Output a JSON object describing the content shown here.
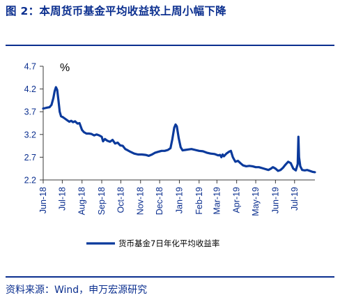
{
  "title": "图 2：本周货币基金平均收益较上周小幅下降",
  "source": "资料来源：Wind，申万宏源研究",
  "colors": {
    "line": "#0b3a9c",
    "text": "#0b2f8f",
    "axis": "#3a3a3a"
  },
  "chart_data": {
    "type": "line",
    "unit": "%",
    "ylim": [
      2.2,
      4.7
    ],
    "yticks": [
      2.2,
      2.7,
      3.2,
      3.7,
      4.2,
      4.7
    ],
    "ytick_labels": [
      "2.2",
      "2.7",
      "3.2",
      "3.7",
      "4.2",
      "4.7"
    ],
    "x_range": [
      "2018-06-01",
      "2019-08-02"
    ],
    "xticks": [
      "2018-06-01",
      "2018-07-01",
      "2018-08-01",
      "2018-09-01",
      "2018-10-01",
      "2018-11-01",
      "2018-12-01",
      "2019-01-01",
      "2019-02-01",
      "2019-03-01",
      "2019-04-01",
      "2019-05-01",
      "2019-06-01",
      "2019-07-01"
    ],
    "xtick_labels": [
      "Jun-18",
      "Jul-18",
      "Aug-18",
      "Sep-18",
      "Oct-18",
      "Nov-18",
      "Dec-18",
      "Jan-19",
      "Feb-19",
      "Mar-19",
      "Apr-19",
      "May-19",
      "Jun-19",
      "Jul-19"
    ],
    "legend_position": "bottom",
    "grid": false,
    "series": [
      {
        "name": "货币基金7日年化平均收益率",
        "points": [
          [
            "2018-06-01",
            3.77
          ],
          [
            "2018-06-04",
            3.78
          ],
          [
            "2018-06-07",
            3.79
          ],
          [
            "2018-06-11",
            3.8
          ],
          [
            "2018-06-14",
            3.85
          ],
          [
            "2018-06-17",
            4.0
          ],
          [
            "2018-06-19",
            4.15
          ],
          [
            "2018-06-21",
            4.24
          ],
          [
            "2018-06-23",
            4.18
          ],
          [
            "2018-06-25",
            3.95
          ],
          [
            "2018-06-27",
            3.7
          ],
          [
            "2018-06-29",
            3.6
          ],
          [
            "2018-07-02",
            3.58
          ],
          [
            "2018-07-05",
            3.55
          ],
          [
            "2018-07-08",
            3.52
          ],
          [
            "2018-07-12",
            3.48
          ],
          [
            "2018-07-15",
            3.5
          ],
          [
            "2018-07-18",
            3.47
          ],
          [
            "2018-07-21",
            3.49
          ],
          [
            "2018-07-25",
            3.44
          ],
          [
            "2018-07-28",
            3.45
          ],
          [
            "2018-08-01",
            3.3
          ],
          [
            "2018-08-04",
            3.25
          ],
          [
            "2018-08-08",
            3.22
          ],
          [
            "2018-08-12",
            3.22
          ],
          [
            "2018-08-16",
            3.21
          ],
          [
            "2018-08-20",
            3.18
          ],
          [
            "2018-08-24",
            3.2
          ],
          [
            "2018-08-28",
            3.18
          ],
          [
            "2018-09-01",
            3.15
          ],
          [
            "2018-09-03",
            3.05
          ],
          [
            "2018-09-06",
            3.1
          ],
          [
            "2018-09-10",
            3.06
          ],
          [
            "2018-09-14",
            3.04
          ],
          [
            "2018-09-18",
            3.08
          ],
          [
            "2018-09-22",
            3.0
          ],
          [
            "2018-09-26",
            3.02
          ],
          [
            "2018-09-30",
            2.96
          ],
          [
            "2018-10-04",
            2.95
          ],
          [
            "2018-10-08",
            2.88
          ],
          [
            "2018-10-12",
            2.85
          ],
          [
            "2018-10-16",
            2.82
          ],
          [
            "2018-10-22",
            2.78
          ],
          [
            "2018-10-28",
            2.76
          ],
          [
            "2018-11-03",
            2.76
          ],
          [
            "2018-11-09",
            2.75
          ],
          [
            "2018-11-14",
            2.73
          ],
          [
            "2018-11-19",
            2.76
          ],
          [
            "2018-11-24",
            2.8
          ],
          [
            "2018-11-29",
            2.82
          ],
          [
            "2018-12-04",
            2.84
          ],
          [
            "2018-12-09",
            2.84
          ],
          [
            "2018-12-14",
            2.86
          ],
          [
            "2018-12-18",
            2.9
          ],
          [
            "2018-12-21",
            3.1
          ],
          [
            "2018-12-24",
            3.35
          ],
          [
            "2018-12-26",
            3.42
          ],
          [
            "2018-12-28",
            3.38
          ],
          [
            "2018-12-31",
            3.12
          ],
          [
            "2019-01-03",
            2.92
          ],
          [
            "2019-01-06",
            2.85
          ],
          [
            "2019-01-10",
            2.86
          ],
          [
            "2019-01-15",
            2.87
          ],
          [
            "2019-01-20",
            2.88
          ],
          [
            "2019-01-26",
            2.86
          ],
          [
            "2019-02-01",
            2.84
          ],
          [
            "2019-02-07",
            2.83
          ],
          [
            "2019-02-13",
            2.8
          ],
          [
            "2019-02-19",
            2.78
          ],
          [
            "2019-02-25",
            2.77
          ],
          [
            "2019-03-03",
            2.74
          ],
          [
            "2019-03-06",
            2.75
          ],
          [
            "2019-03-08",
            2.7
          ],
          [
            "2019-03-10",
            2.76
          ],
          [
            "2019-03-12",
            2.72
          ],
          [
            "2019-03-16",
            2.78
          ],
          [
            "2019-03-20",
            2.82
          ],
          [
            "2019-03-23",
            2.84
          ],
          [
            "2019-03-26",
            2.7
          ],
          [
            "2019-03-30",
            2.6
          ],
          [
            "2019-04-03",
            2.62
          ],
          [
            "2019-04-07",
            2.57
          ],
          [
            "2019-04-11",
            2.52
          ],
          [
            "2019-04-16",
            2.5
          ],
          [
            "2019-04-21",
            2.51
          ],
          [
            "2019-04-26",
            2.5
          ],
          [
            "2019-05-01",
            2.48
          ],
          [
            "2019-05-06",
            2.48
          ],
          [
            "2019-05-11",
            2.46
          ],
          [
            "2019-05-16",
            2.44
          ],
          [
            "2019-05-21",
            2.42
          ],
          [
            "2019-05-25",
            2.45
          ],
          [
            "2019-05-28",
            2.48
          ],
          [
            "2019-06-01",
            2.45
          ],
          [
            "2019-06-05",
            2.4
          ],
          [
            "2019-06-09",
            2.42
          ],
          [
            "2019-06-13",
            2.47
          ],
          [
            "2019-06-17",
            2.54
          ],
          [
            "2019-06-21",
            2.6
          ],
          [
            "2019-06-25",
            2.57
          ],
          [
            "2019-06-29",
            2.45
          ],
          [
            "2019-07-03",
            2.41
          ],
          [
            "2019-07-06",
            2.55
          ],
          [
            "2019-07-07",
            3.15
          ],
          [
            "2019-07-08",
            2.7
          ],
          [
            "2019-07-10",
            2.5
          ],
          [
            "2019-07-13",
            2.42
          ],
          [
            "2019-07-17",
            2.41
          ],
          [
            "2019-07-21",
            2.42
          ],
          [
            "2019-07-25",
            2.4
          ],
          [
            "2019-07-29",
            2.38
          ],
          [
            "2019-08-02",
            2.37
          ]
        ]
      }
    ]
  }
}
